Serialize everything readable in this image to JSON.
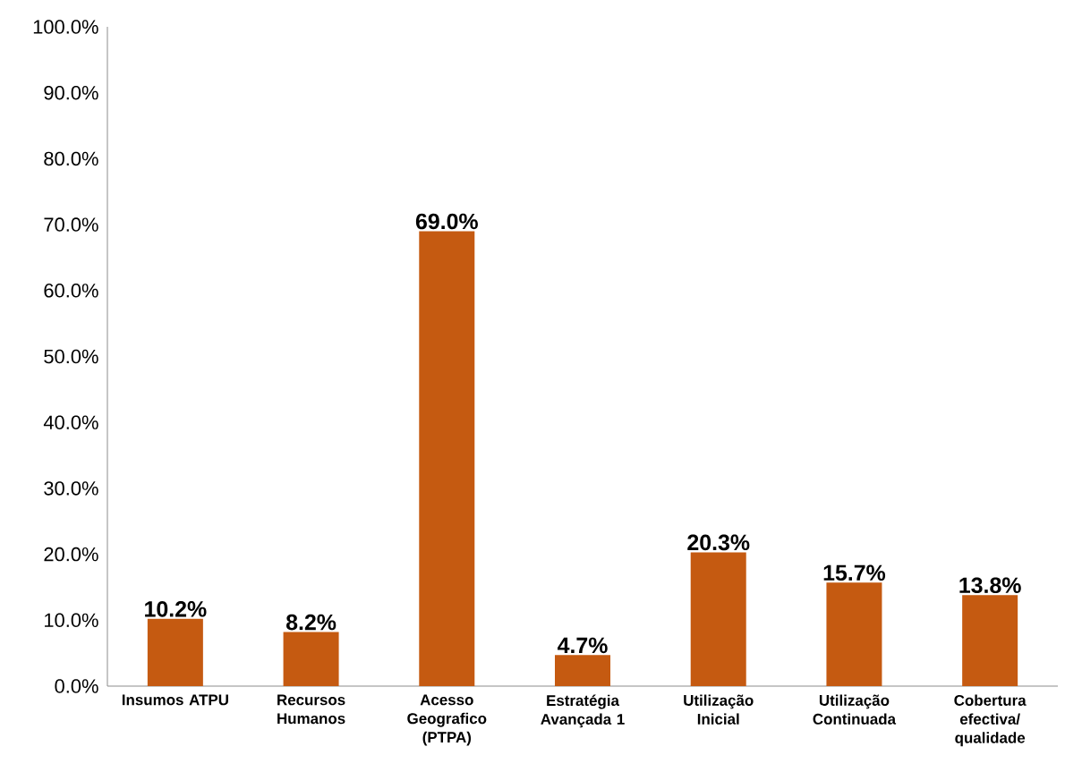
{
  "chart_data": {
    "type": "bar",
    "categories": [
      "Insumos ATPU",
      "Recursos Humanos",
      "Acesso Geografico (PTPA)",
      "Estratégia Avançada 1",
      "Utilização Inicial",
      "Utilização Continuada",
      "Cobertura efectiva/ qualidade"
    ],
    "values": [
      10.2,
      8.2,
      69.0,
      4.7,
      20.3,
      15.7,
      13.8
    ],
    "value_labels": [
      "10.2%",
      "8.2%",
      "69.0%",
      "4.7%",
      "20.3%",
      "15.7%",
      "13.8%"
    ],
    "color": "#c55a11",
    "ylim": [
      0,
      100
    ],
    "yticks": [
      {
        "value": 0,
        "label": "0.0%"
      },
      {
        "value": 10,
        "label": "10.0%"
      },
      {
        "value": 20,
        "label": "20.0%"
      },
      {
        "value": 30,
        "label": "30.0%"
      },
      {
        "value": 40,
        "label": "40.0%"
      },
      {
        "value": 50,
        "label": "50.0%"
      },
      {
        "value": 60,
        "label": "60.0%"
      },
      {
        "value": 70,
        "label": "70.0%"
      },
      {
        "value": 80,
        "label": "80.0%"
      },
      {
        "value": 90,
        "label": "90.0%"
      },
      {
        "value": 100,
        "label": "100.0%"
      }
    ],
    "grid": false
  }
}
